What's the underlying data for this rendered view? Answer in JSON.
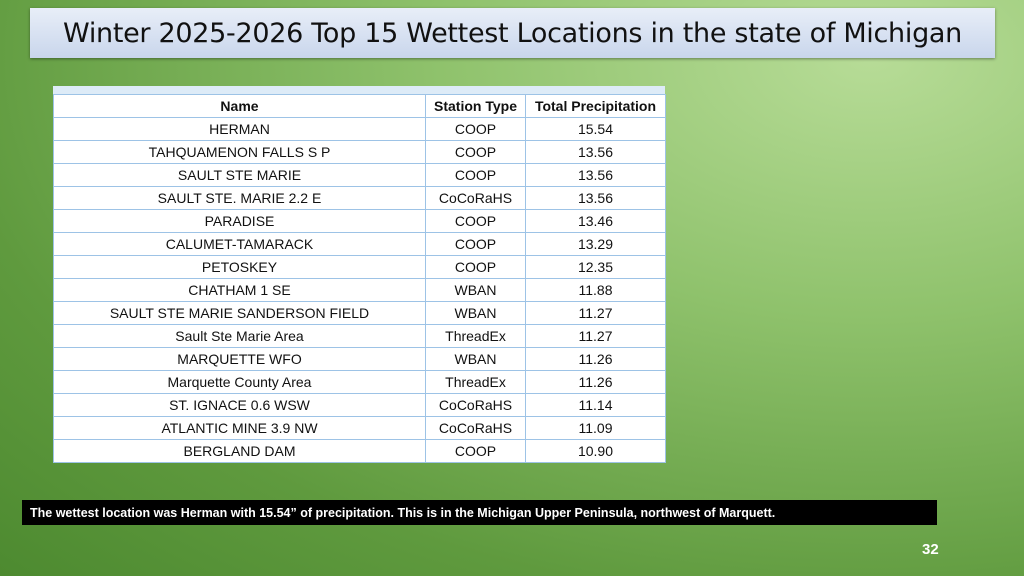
{
  "header": {
    "title": "Winter 2025-2026 Top 15 Wettest Locations in the state of Michigan"
  },
  "table": {
    "columns": [
      "Name",
      "Station Type",
      "Total Precipitation"
    ],
    "rows": [
      [
        "HERMAN",
        "COOP",
        "15.54"
      ],
      [
        "TAHQUAMENON FALLS S P",
        "COOP",
        "13.56"
      ],
      [
        "SAULT STE MARIE",
        "COOP",
        "13.56"
      ],
      [
        "SAULT STE. MARIE 2.2 E",
        "CoCoRaHS",
        "13.56"
      ],
      [
        "PARADISE",
        "COOP",
        "13.46"
      ],
      [
        "CALUMET-TAMARACK",
        "COOP",
        "13.29"
      ],
      [
        "PETOSKEY",
        "COOP",
        "12.35"
      ],
      [
        "CHATHAM 1 SE",
        "WBAN",
        "11.88"
      ],
      [
        "SAULT STE MARIE SANDERSON FIELD",
        "WBAN",
        "11.27"
      ],
      [
        "Sault Ste Marie Area",
        "ThreadEx",
        "11.27"
      ],
      [
        "MARQUETTE WFO",
        "WBAN",
        "11.26"
      ],
      [
        "Marquette County Area",
        "ThreadEx",
        "11.26"
      ],
      [
        "ST. IGNACE 0.6 WSW",
        "CoCoRaHS",
        "11.14"
      ],
      [
        "ATLANTIC MINE 3.9 NW",
        "CoCoRaHS",
        "11.09"
      ],
      [
        "BERGLAND DAM",
        "COOP",
        "10.90"
      ]
    ]
  },
  "caption": "The wettest location was Herman with 15.54” of precipitation.  This is in the Michigan Upper Peninsula, northwest of Marquett.",
  "page_number": "32"
}
